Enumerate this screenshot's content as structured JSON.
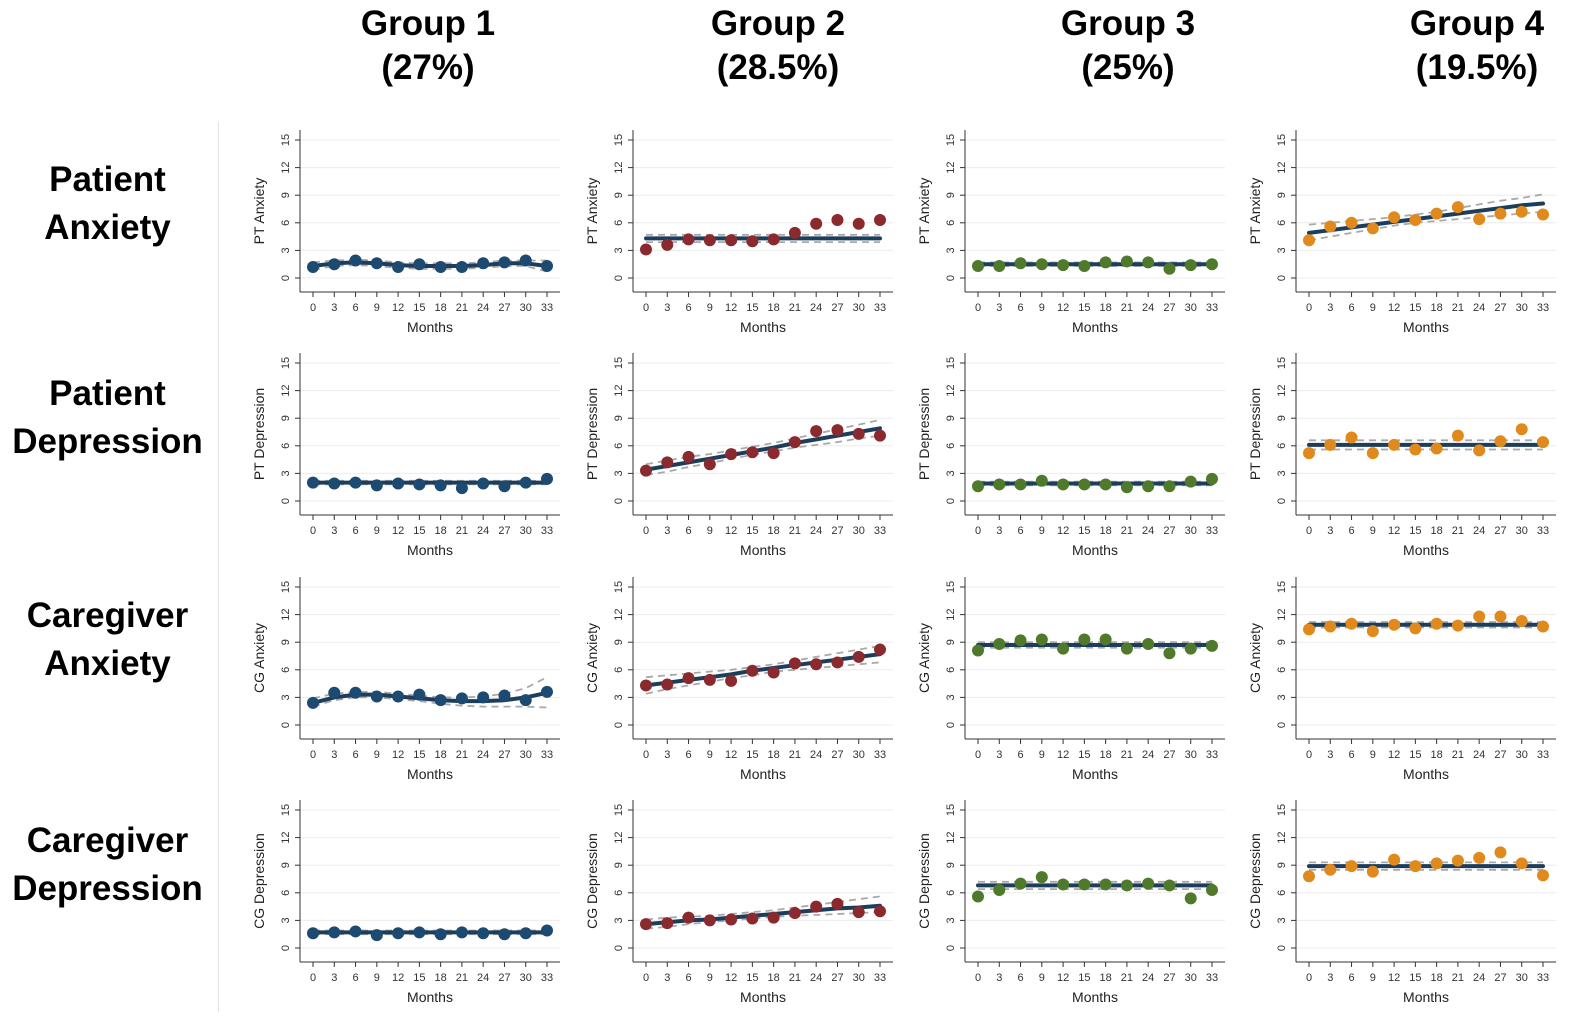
{
  "columns": [
    {
      "name": "Group 1",
      "pct": "(27%)",
      "color": "#1d4a70"
    },
    {
      "name": "Group 2",
      "pct": "(28.5%)",
      "color": "#8b2a2e"
    },
    {
      "name": "Group 3",
      "pct": "(25%)",
      "color": "#4f7a2c"
    },
    {
      "name": "Group 4",
      "pct": "(19.5%)",
      "color": "#e08a1e"
    }
  ],
  "rows": [
    {
      "line1": "Patient",
      "line2": "Anxiety",
      "ylabel": "PT Anxiety"
    },
    {
      "line1": "Patient",
      "line2": "Depression",
      "ylabel": "PT Depression"
    },
    {
      "line1": "Caregiver",
      "line2": "Anxiety",
      "ylabel": "CG Anxiety"
    },
    {
      "line1": "Caregiver",
      "line2": "Depression",
      "ylabel": "CG Depression"
    }
  ],
  "chart_data": {
    "type": "scatter",
    "x": [
      0,
      3,
      6,
      9,
      12,
      15,
      18,
      21,
      24,
      27,
      30,
      33
    ],
    "xlabel": "Months",
    "xlim": [
      0,
      33
    ],
    "ylim": [
      0,
      15
    ],
    "yticks": [
      0,
      3,
      6,
      9,
      12,
      15
    ],
    "fit_line_color": "#1d3d5c",
    "ci_line_color": "#a9a9a9",
    "panels": [
      [
        {
          "series_values": [
            1.2,
            1.5,
            1.9,
            1.6,
            1.2,
            1.5,
            1.2,
            1.2,
            1.6,
            1.7,
            1.9,
            1.3
          ],
          "fit": [
            1.3,
            1.6,
            1.7,
            1.6,
            1.4,
            1.3,
            1.3,
            1.3,
            1.4,
            1.6,
            1.6,
            1.3
          ],
          "ci_low": [
            0.9,
            1.3,
            1.4,
            1.3,
            1.1,
            1.0,
            1.0,
            1.0,
            1.1,
            1.3,
            1.3,
            0.7
          ],
          "ci_high": [
            1.7,
            1.9,
            2.0,
            1.9,
            1.7,
            1.6,
            1.6,
            1.6,
            1.7,
            1.9,
            1.9,
            1.9
          ]
        },
        {
          "series_values": [
            3.1,
            3.6,
            4.2,
            4.1,
            4.1,
            4.0,
            4.2,
            4.9,
            5.9,
            6.3,
            5.9,
            6.3
          ],
          "fit": [
            4.3,
            4.3,
            4.3,
            4.3,
            4.3,
            4.3,
            4.3,
            4.3,
            4.3,
            4.3,
            4.3,
            4.3
          ],
          "ci_low": [
            3.9,
            3.9,
            3.9,
            3.9,
            3.9,
            3.9,
            3.9,
            3.9,
            3.9,
            3.9,
            3.9,
            3.9
          ],
          "ci_high": [
            4.7,
            4.7,
            4.7,
            4.7,
            4.7,
            4.7,
            4.7,
            4.7,
            4.7,
            4.7,
            4.7,
            4.7
          ]
        },
        {
          "series_values": [
            1.3,
            1.3,
            1.6,
            1.5,
            1.4,
            1.3,
            1.7,
            1.8,
            1.7,
            1.0,
            1.4,
            1.5
          ],
          "fit": [
            1.5,
            1.5,
            1.5,
            1.5,
            1.5,
            1.5,
            1.5,
            1.5,
            1.5,
            1.5,
            1.5,
            1.5
          ],
          "ci_low": [
            1.3,
            1.3,
            1.3,
            1.3,
            1.3,
            1.3,
            1.3,
            1.3,
            1.3,
            1.3,
            1.3,
            1.3
          ],
          "ci_high": [
            1.7,
            1.7,
            1.7,
            1.7,
            1.7,
            1.7,
            1.7,
            1.7,
            1.7,
            1.7,
            1.7,
            1.7
          ]
        },
        {
          "series_values": [
            4.1,
            5.6,
            6.0,
            5.4,
            6.6,
            6.3,
            7.0,
            7.7,
            6.4,
            7.0,
            7.2,
            6.9
          ],
          "fit": [
            4.9,
            5.2,
            5.5,
            5.8,
            6.1,
            6.4,
            6.7,
            7.0,
            7.3,
            7.6,
            7.9,
            8.1
          ],
          "ci_low": [
            4.1,
            4.5,
            4.9,
            5.3,
            5.7,
            6.0,
            6.2,
            6.4,
            6.6,
            6.8,
            7.0,
            7.2
          ],
          "ci_high": [
            5.8,
            6.0,
            6.2,
            6.4,
            6.6,
            6.9,
            7.2,
            7.6,
            8.0,
            8.4,
            8.7,
            9.1
          ]
        }
      ],
      [
        {
          "series_values": [
            2.0,
            1.9,
            2.0,
            1.7,
            1.9,
            1.8,
            1.7,
            1.4,
            1.9,
            1.6,
            2.0,
            2.4
          ],
          "fit": [
            2.0,
            2.0,
            2.0,
            2.0,
            2.0,
            2.0,
            2.0,
            2.0,
            2.0,
            2.0,
            2.0,
            2.0
          ],
          "ci_low": [
            1.8,
            1.8,
            1.8,
            1.8,
            1.8,
            1.8,
            1.8,
            1.8,
            1.8,
            1.8,
            1.8,
            1.8
          ],
          "ci_high": [
            2.2,
            2.2,
            2.2,
            2.2,
            2.2,
            2.2,
            2.2,
            2.2,
            2.2,
            2.2,
            2.2,
            2.2
          ]
        },
        {
          "series_values": [
            3.3,
            4.2,
            4.8,
            4.0,
            5.1,
            5.3,
            5.2,
            6.4,
            7.6,
            7.7,
            7.3,
            7.1
          ],
          "fit": [
            3.4,
            3.8,
            4.2,
            4.6,
            5.0,
            5.4,
            5.8,
            6.3,
            6.7,
            7.1,
            7.5,
            7.9
          ],
          "ci_low": [
            2.8,
            3.2,
            3.7,
            4.1,
            4.6,
            5.0,
            5.4,
            5.8,
            6.1,
            6.4,
            6.8,
            7.1
          ],
          "ci_high": [
            4.0,
            4.4,
            4.8,
            5.1,
            5.5,
            5.9,
            6.3,
            6.8,
            7.3,
            7.8,
            8.3,
            8.8
          ]
        },
        {
          "series_values": [
            1.6,
            1.8,
            1.8,
            2.2,
            1.8,
            1.8,
            1.8,
            1.5,
            1.6,
            1.6,
            2.1,
            2.4
          ],
          "fit": [
            1.9,
            1.9,
            1.9,
            1.9,
            1.9,
            1.9,
            1.9,
            1.9,
            1.9,
            1.9,
            1.9,
            1.9
          ],
          "ci_low": [
            1.7,
            1.7,
            1.7,
            1.7,
            1.7,
            1.7,
            1.7,
            1.7,
            1.7,
            1.7,
            1.7,
            1.7
          ],
          "ci_high": [
            2.1,
            2.1,
            2.1,
            2.1,
            2.1,
            2.1,
            2.1,
            2.1,
            2.1,
            2.1,
            2.1,
            2.1
          ]
        },
        {
          "series_values": [
            5.2,
            6.1,
            6.9,
            5.2,
            6.1,
            5.6,
            5.7,
            7.1,
            5.5,
            6.5,
            7.8,
            6.4
          ],
          "fit": [
            6.1,
            6.1,
            6.1,
            6.1,
            6.1,
            6.1,
            6.1,
            6.1,
            6.1,
            6.1,
            6.1,
            6.1
          ],
          "ci_low": [
            5.6,
            5.6,
            5.6,
            5.6,
            5.6,
            5.6,
            5.6,
            5.6,
            5.6,
            5.6,
            5.6,
            5.6
          ],
          "ci_high": [
            6.6,
            6.6,
            6.6,
            6.6,
            6.6,
            6.6,
            6.6,
            6.6,
            6.6,
            6.6,
            6.6,
            6.6
          ]
        }
      ],
      [
        {
          "series_values": [
            2.4,
            3.5,
            3.5,
            3.1,
            3.1,
            3.3,
            2.7,
            2.9,
            3.0,
            3.2,
            2.7,
            3.6
          ],
          "fit": [
            2.4,
            3.0,
            3.3,
            3.3,
            3.1,
            2.9,
            2.7,
            2.6,
            2.6,
            2.7,
            3.0,
            3.5
          ],
          "ci_low": [
            2.0,
            2.7,
            3.0,
            3.0,
            2.8,
            2.6,
            2.3,
            2.1,
            2.0,
            2.0,
            2.0,
            1.9
          ],
          "ci_high": [
            2.9,
            3.4,
            3.6,
            3.6,
            3.4,
            3.2,
            3.0,
            3.0,
            3.1,
            3.4,
            4.0,
            5.2
          ]
        },
        {
          "series_values": [
            4.3,
            4.4,
            5.1,
            4.9,
            4.8,
            5.9,
            5.7,
            6.7,
            6.6,
            6.8,
            7.4,
            8.2
          ],
          "fit": [
            4.3,
            4.6,
            4.9,
            5.2,
            5.5,
            5.9,
            6.2,
            6.5,
            6.8,
            7.1,
            7.4,
            7.7
          ],
          "ci_low": [
            3.4,
            3.9,
            4.3,
            4.7,
            5.1,
            5.4,
            5.8,
            6.0,
            6.2,
            6.4,
            6.6,
            6.8
          ],
          "ci_high": [
            5.2,
            5.4,
            5.6,
            5.8,
            6.0,
            6.3,
            6.6,
            7.0,
            7.4,
            7.8,
            8.2,
            8.6
          ]
        },
        {
          "series_values": [
            8.1,
            8.8,
            9.2,
            9.3,
            8.3,
            9.3,
            9.3,
            8.3,
            8.8,
            7.8,
            8.3,
            8.6
          ],
          "fit": [
            8.7,
            8.7,
            8.7,
            8.7,
            8.7,
            8.7,
            8.7,
            8.7,
            8.7,
            8.7,
            8.7,
            8.7
          ],
          "ci_low": [
            8.4,
            8.4,
            8.4,
            8.4,
            8.4,
            8.4,
            8.4,
            8.4,
            8.4,
            8.4,
            8.4,
            8.4
          ],
          "ci_high": [
            9.0,
            9.0,
            9.0,
            9.0,
            9.0,
            9.0,
            9.0,
            9.0,
            9.0,
            9.0,
            9.0,
            9.0
          ]
        },
        {
          "series_values": [
            10.4,
            10.7,
            11.0,
            10.2,
            10.9,
            10.5,
            11.0,
            10.8,
            11.8,
            11.8,
            11.3,
            10.7
          ],
          "fit": [
            10.9,
            10.9,
            10.9,
            10.9,
            10.9,
            10.9,
            10.9,
            10.9,
            10.9,
            10.9,
            10.9,
            10.9
          ],
          "ci_low": [
            10.6,
            10.6,
            10.6,
            10.6,
            10.6,
            10.6,
            10.6,
            10.6,
            10.6,
            10.6,
            10.6,
            10.6
          ],
          "ci_high": [
            11.2,
            11.2,
            11.2,
            11.2,
            11.2,
            11.2,
            11.2,
            11.2,
            11.2,
            11.2,
            11.2,
            11.2
          ]
        }
      ],
      [
        {
          "series_values": [
            1.6,
            1.7,
            1.8,
            1.4,
            1.6,
            1.7,
            1.5,
            1.7,
            1.6,
            1.5,
            1.6,
            1.9
          ],
          "fit": [
            1.7,
            1.7,
            1.7,
            1.7,
            1.7,
            1.7,
            1.7,
            1.7,
            1.7,
            1.7,
            1.7,
            1.7
          ],
          "ci_low": [
            1.5,
            1.5,
            1.5,
            1.5,
            1.5,
            1.5,
            1.5,
            1.5,
            1.5,
            1.5,
            1.5,
            1.5
          ],
          "ci_high": [
            1.9,
            1.9,
            1.9,
            1.9,
            1.9,
            1.9,
            1.9,
            1.9,
            1.9,
            1.9,
            1.9,
            1.9
          ]
        },
        {
          "series_values": [
            2.6,
            2.7,
            3.3,
            3.0,
            3.1,
            3.2,
            3.3,
            3.8,
            4.5,
            4.8,
            3.9,
            4.0
          ],
          "fit": [
            2.6,
            2.8,
            3.0,
            3.1,
            3.3,
            3.5,
            3.7,
            3.9,
            4.1,
            4.3,
            4.4,
            4.6
          ],
          "ci_low": [
            2.1,
            2.3,
            2.6,
            2.8,
            3.0,
            3.2,
            3.4,
            3.5,
            3.6,
            3.7,
            3.8,
            3.9
          ],
          "ci_high": [
            3.1,
            3.3,
            3.4,
            3.5,
            3.7,
            3.9,
            4.1,
            4.4,
            4.7,
            5.0,
            5.3,
            5.6
          ]
        },
        {
          "series_values": [
            5.6,
            6.3,
            7.0,
            7.7,
            6.9,
            6.9,
            6.9,
            6.8,
            7.0,
            6.8,
            5.4,
            6.3
          ],
          "fit": [
            6.8,
            6.8,
            6.8,
            6.8,
            6.8,
            6.8,
            6.8,
            6.8,
            6.8,
            6.8,
            6.8,
            6.8
          ],
          "ci_low": [
            6.4,
            6.4,
            6.4,
            6.4,
            6.4,
            6.4,
            6.4,
            6.4,
            6.4,
            6.4,
            6.4,
            6.4
          ],
          "ci_high": [
            7.2,
            7.2,
            7.2,
            7.2,
            7.2,
            7.2,
            7.2,
            7.2,
            7.2,
            7.2,
            7.2,
            7.2
          ]
        },
        {
          "series_values": [
            7.8,
            8.5,
            8.9,
            8.3,
            9.6,
            8.9,
            9.2,
            9.5,
            9.8,
            10.4,
            9.2,
            7.9
          ],
          "fit": [
            8.9,
            8.9,
            8.9,
            8.9,
            8.9,
            8.9,
            8.9,
            8.9,
            8.9,
            8.9,
            8.9,
            8.9
          ],
          "ci_low": [
            8.5,
            8.5,
            8.5,
            8.5,
            8.5,
            8.5,
            8.5,
            8.5,
            8.5,
            8.5,
            8.5,
            8.5
          ],
          "ci_high": [
            9.3,
            9.3,
            9.3,
            9.3,
            9.3,
            9.3,
            9.3,
            9.3,
            9.3,
            9.3,
            9.3,
            9.3
          ]
        }
      ]
    ]
  }
}
